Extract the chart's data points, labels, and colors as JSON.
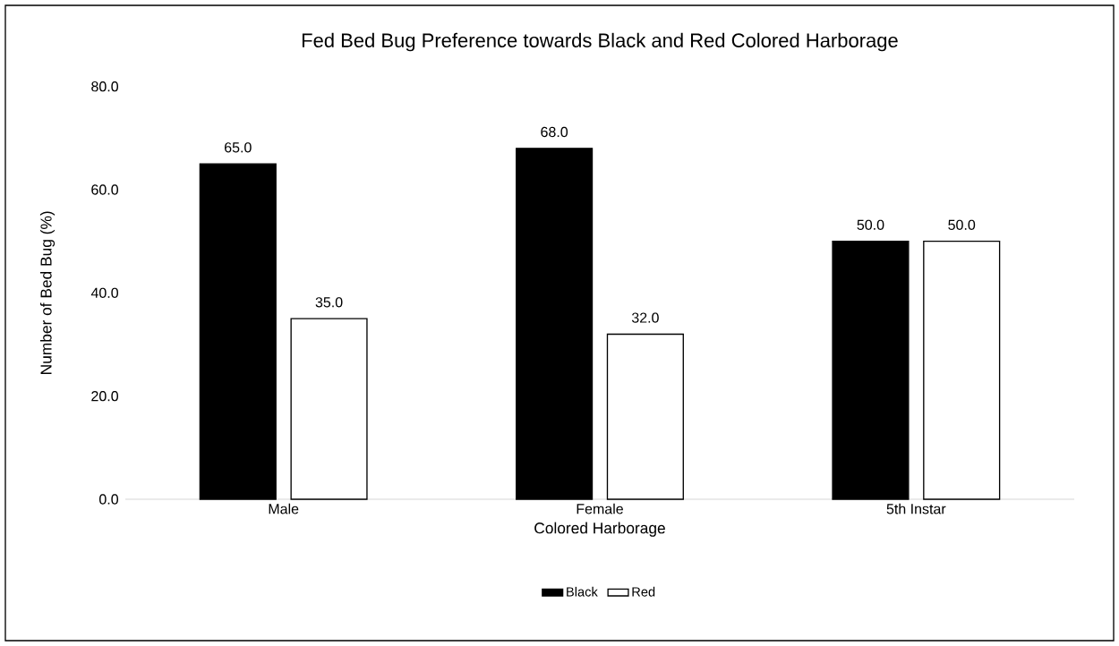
{
  "chart_data": {
    "type": "bar",
    "title": "Fed Bed Bug Preference towards Black and Red Colored Harborage",
    "xlabel": "Colored Harborage",
    "ylabel": "Number of Bed Bug (%)",
    "categories": [
      "Male",
      "Female",
      "5th Instar"
    ],
    "series": [
      {
        "name": "Black",
        "color": "#000000",
        "values": [
          65,
          68,
          50
        ],
        "value_labels": [
          "65.0",
          "68.0",
          "50.0"
        ]
      },
      {
        "name": "Red",
        "color": "#ffffff",
        "values": [
          35,
          32,
          50
        ],
        "value_labels": [
          "35.0",
          "32.0",
          "50.0"
        ]
      }
    ],
    "ylim": [
      0,
      80
    ],
    "yticks": [
      {
        "value": 0,
        "label": "0.0"
      },
      {
        "value": 20,
        "label": "20.0"
      },
      {
        "value": 40,
        "label": "40.0"
      },
      {
        "value": 60,
        "label": "60.0"
      },
      {
        "value": 80,
        "label": "80.0"
      }
    ],
    "grid": false,
    "legend": "bottom"
  }
}
